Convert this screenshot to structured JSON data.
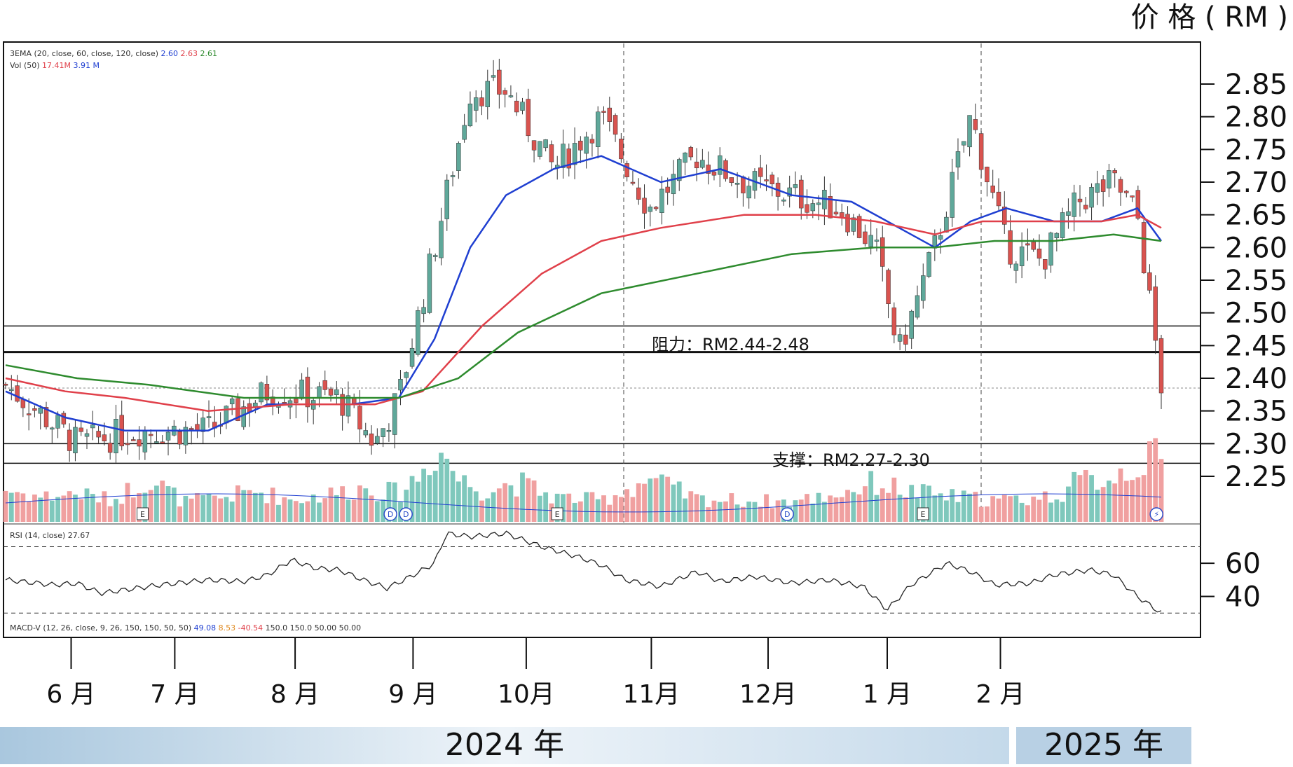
{
  "header": {
    "unit_label": "价 格 ( RM )"
  },
  "indicators": {
    "ema_legend_name": "3EMA (20, close, 60, close, 120, close)",
    "ema_values": [
      "2.60",
      "2.63",
      "2.61"
    ],
    "vol_legend_name": "Vol (50)",
    "vol_values": [
      "17.41M",
      "3.91 M"
    ],
    "rsi_legend_name": "RSI (14, close)",
    "rsi_value": "27.67",
    "macd_legend_name": "MACD-V (12, 26, close, 9, 26, 150, 150, 50, 50)",
    "macd_values": [
      "49.08",
      "8.53",
      "-40.54",
      "150.0",
      "150.0",
      "50.00",
      "50.00"
    ]
  },
  "annotations": {
    "resistance_label": "阻力：RM2.44-2.48",
    "support_label": "支撑：RM2.27-2.30"
  },
  "timeline": {
    "months": [
      "6 月",
      "7 月",
      "8 月",
      "9 月",
      "10月",
      "11月",
      "12月",
      "1 月",
      "2 月"
    ],
    "years": [
      "2024 年",
      "2025 年"
    ]
  },
  "event_markers": [
    "E",
    "D",
    "D",
    "E",
    "D",
    "E",
    "⚡"
  ],
  "colors": {
    "up": "#5fa89a",
    "down": "#d9534f",
    "vol_up": "#7fc8bc",
    "vol_down": "#f0a0a0",
    "ema_short": "#1f3fd1",
    "ema_mid": "#e0404a",
    "ema_long": "#2e8b2e",
    "year_band": "#d6e6f2"
  },
  "chart_data": {
    "type": "candlestick",
    "unit": "RM",
    "y_ticks": [
      "2.85",
      "2.80",
      "2.75",
      "2.70",
      "2.65",
      "2.60",
      "2.55",
      "2.50",
      "2.45",
      "2.40",
      "2.35",
      "2.30",
      "2.25"
    ],
    "ylim": [
      2.25,
      2.85
    ],
    "resistance_zone": [
      2.44,
      2.48
    ],
    "support_zone": [
      2.27,
      2.3
    ],
    "current_price_ref": 2.385,
    "series_keypoints": [
      {
        "x": 0.0,
        "y": 2.39
      },
      {
        "x": 0.06,
        "y": 2.3
      },
      {
        "x": 0.11,
        "y": 2.32
      },
      {
        "x": 0.17,
        "y": 2.32
      },
      {
        "x": 0.22,
        "y": 2.38
      },
      {
        "x": 0.28,
        "y": 2.37
      },
      {
        "x": 0.31,
        "y": 2.3
      },
      {
        "x": 0.33,
        "y": 2.37
      },
      {
        "x": 0.36,
        "y": 2.6
      },
      {
        "x": 0.39,
        "y": 2.84
      },
      {
        "x": 0.42,
        "y": 2.84
      },
      {
        "x": 0.46,
        "y": 2.72
      },
      {
        "x": 0.5,
        "y": 2.8
      },
      {
        "x": 0.54,
        "y": 2.66
      },
      {
        "x": 0.58,
        "y": 2.74
      },
      {
        "x": 0.62,
        "y": 2.7
      },
      {
        "x": 0.66,
        "y": 2.68
      },
      {
        "x": 0.7,
        "y": 2.66
      },
      {
        "x": 0.73,
        "y": 2.6
      },
      {
        "x": 0.75,
        "y": 2.44
      },
      {
        "x": 0.78,
        "y": 2.6
      },
      {
        "x": 0.81,
        "y": 2.8
      },
      {
        "x": 0.84,
        "y": 2.6
      },
      {
        "x": 0.87,
        "y": 2.58
      },
      {
        "x": 0.9,
        "y": 2.67
      },
      {
        "x": 0.93,
        "y": 2.7
      },
      {
        "x": 0.95,
        "y": 2.65
      },
      {
        "x": 0.97,
        "y": 2.39
      }
    ],
    "ema_series": [
      {
        "label": "EMA20",
        "points": [
          [
            0,
            2.38
          ],
          [
            0.05,
            2.34
          ],
          [
            0.1,
            2.32
          ],
          [
            0.17,
            2.32
          ],
          [
            0.22,
            2.36
          ],
          [
            0.29,
            2.36
          ],
          [
            0.33,
            2.37
          ],
          [
            0.36,
            2.46
          ],
          [
            0.39,
            2.6
          ],
          [
            0.42,
            2.68
          ],
          [
            0.46,
            2.72
          ],
          [
            0.5,
            2.74
          ],
          [
            0.55,
            2.7
          ],
          [
            0.6,
            2.72
          ],
          [
            0.66,
            2.68
          ],
          [
            0.71,
            2.67
          ],
          [
            0.75,
            2.63
          ],
          [
            0.78,
            2.6
          ],
          [
            0.81,
            2.64
          ],
          [
            0.84,
            2.66
          ],
          [
            0.88,
            2.64
          ],
          [
            0.92,
            2.64
          ],
          [
            0.95,
            2.66
          ],
          [
            0.97,
            2.61
          ]
        ]
      },
      {
        "label": "EMA60",
        "points": [
          [
            0,
            2.4
          ],
          [
            0.05,
            2.38
          ],
          [
            0.1,
            2.37
          ],
          [
            0.17,
            2.35
          ],
          [
            0.24,
            2.36
          ],
          [
            0.31,
            2.36
          ],
          [
            0.35,
            2.38
          ],
          [
            0.4,
            2.48
          ],
          [
            0.45,
            2.56
          ],
          [
            0.5,
            2.61
          ],
          [
            0.55,
            2.63
          ],
          [
            0.62,
            2.65
          ],
          [
            0.68,
            2.65
          ],
          [
            0.73,
            2.64
          ],
          [
            0.78,
            2.62
          ],
          [
            0.82,
            2.64
          ],
          [
            0.87,
            2.64
          ],
          [
            0.92,
            2.64
          ],
          [
            0.95,
            2.65
          ],
          [
            0.97,
            2.63
          ]
        ]
      },
      {
        "label": "EMA120",
        "points": [
          [
            0,
            2.42
          ],
          [
            0.06,
            2.4
          ],
          [
            0.12,
            2.39
          ],
          [
            0.2,
            2.37
          ],
          [
            0.27,
            2.37
          ],
          [
            0.33,
            2.37
          ],
          [
            0.38,
            2.4
          ],
          [
            0.43,
            2.47
          ],
          [
            0.5,
            2.53
          ],
          [
            0.58,
            2.56
          ],
          [
            0.66,
            2.59
          ],
          [
            0.73,
            2.6
          ],
          [
            0.78,
            2.6
          ],
          [
            0.83,
            2.61
          ],
          [
            0.88,
            2.61
          ],
          [
            0.93,
            2.62
          ],
          [
            0.97,
            2.61
          ]
        ]
      }
    ],
    "rsi": {
      "y_ticks": [
        "60",
        "40"
      ],
      "ylim": [
        28,
        82
      ],
      "overbought": 70,
      "oversold": 30,
      "points": [
        [
          0,
          50
        ],
        [
          0.04,
          47
        ],
        [
          0.06,
          48
        ],
        [
          0.08,
          42
        ],
        [
          0.1,
          44
        ],
        [
          0.13,
          47
        ],
        [
          0.17,
          50
        ],
        [
          0.2,
          49
        ],
        [
          0.22,
          53
        ],
        [
          0.24,
          62
        ],
        [
          0.26,
          57
        ],
        [
          0.28,
          56
        ],
        [
          0.3,
          50
        ],
        [
          0.32,
          45
        ],
        [
          0.34,
          52
        ],
        [
          0.36,
          60
        ],
        [
          0.37,
          78
        ],
        [
          0.39,
          76
        ],
        [
          0.42,
          78
        ],
        [
          0.45,
          70
        ],
        [
          0.48,
          64
        ],
        [
          0.5,
          59
        ],
        [
          0.52,
          50
        ],
        [
          0.55,
          46
        ],
        [
          0.58,
          55
        ],
        [
          0.6,
          49
        ],
        [
          0.63,
          52
        ],
        [
          0.66,
          48
        ],
        [
          0.69,
          50
        ],
        [
          0.72,
          46
        ],
        [
          0.74,
          32
        ],
        [
          0.76,
          47
        ],
        [
          0.79,
          60
        ],
        [
          0.81,
          55
        ],
        [
          0.83,
          47
        ],
        [
          0.86,
          48
        ],
        [
          0.88,
          53
        ],
        [
          0.91,
          56
        ],
        [
          0.93,
          53
        ],
        [
          0.95,
          40
        ],
        [
          0.97,
          30
        ]
      ]
    },
    "volume": {
      "points": [
        [
          0,
          0.45
        ],
        [
          0.03,
          0.35
        ],
        [
          0.06,
          0.4
        ],
        [
          0.09,
          0.3
        ],
        [
          0.12,
          0.62
        ],
        [
          0.15,
          0.28
        ],
        [
          0.18,
          0.34
        ],
        [
          0.21,
          0.43
        ],
        [
          0.24,
          0.31
        ],
        [
          0.27,
          0.38
        ],
        [
          0.3,
          0.48
        ],
        [
          0.33,
          0.4
        ],
        [
          0.35,
          0.7
        ],
        [
          0.36,
          1.0
        ],
        [
          0.37,
          0.92
        ],
        [
          0.38,
          0.6
        ],
        [
          0.4,
          0.45
        ],
        [
          0.43,
          0.55
        ],
        [
          0.46,
          0.35
        ],
        [
          0.5,
          0.3
        ],
        [
          0.54,
          0.6
        ],
        [
          0.58,
          0.32
        ],
        [
          0.62,
          0.3
        ],
        [
          0.66,
          0.28
        ],
        [
          0.7,
          0.4
        ],
        [
          0.73,
          0.55
        ],
        [
          0.76,
          0.42
        ],
        [
          0.8,
          0.34
        ],
        [
          0.84,
          0.3
        ],
        [
          0.88,
          0.36
        ],
        [
          0.9,
          0.55
        ],
        [
          0.93,
          0.65
        ],
        [
          0.95,
          0.82
        ],
        [
          0.97,
          0.9
        ]
      ]
    }
  }
}
